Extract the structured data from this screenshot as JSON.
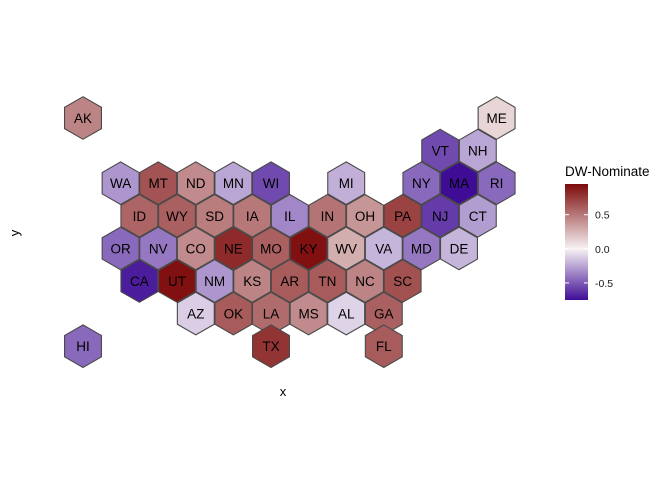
{
  "chart_data": {
    "type": "heatmap",
    "subtype": "hex-tile-map",
    "title": "",
    "xlabel": "x",
    "ylabel": "y",
    "grid": false,
    "legend": {
      "title": "DW-Nominate",
      "placement": "right",
      "range": [
        -0.75,
        0.95
      ],
      "ticks": [
        {
          "value": 0.5,
          "label": "0.5"
        },
        {
          "value": 0.0,
          "label": "0.0"
        },
        {
          "value": -0.5,
          "label": "-0.5"
        }
      ],
      "low_color": "#3f0d95",
      "mid_color": "#f7f2f4",
      "high_color": "#7d0a0a"
    },
    "states": [
      {
        "abbr": "AK",
        "col": 0,
        "row": 0,
        "value": 0.45
      },
      {
        "abbr": "ME",
        "col": 11,
        "row": 0,
        "value": 0.12
      },
      {
        "abbr": "VT",
        "col": 9.5,
        "row": 1,
        "value": -0.55
      },
      {
        "abbr": "NH",
        "col": 10.5,
        "row": 1,
        "value": -0.25
      },
      {
        "abbr": "WA",
        "col": 1,
        "row": 2,
        "value": -0.3
      },
      {
        "abbr": "MT",
        "col": 2,
        "row": 2,
        "value": 0.65
      },
      {
        "abbr": "ND",
        "col": 3,
        "row": 2,
        "value": 0.42
      },
      {
        "abbr": "MN",
        "col": 4,
        "row": 2,
        "value": -0.25
      },
      {
        "abbr": "WI",
        "col": 5,
        "row": 2,
        "value": -0.55
      },
      {
        "abbr": "MI",
        "col": 7,
        "row": 2,
        "value": -0.22
      },
      {
        "abbr": "NY",
        "col": 9,
        "row": 2,
        "value": -0.45
      },
      {
        "abbr": "MA",
        "col": 10,
        "row": 2,
        "value": -0.8
      },
      {
        "abbr": "RI",
        "col": 11,
        "row": 2,
        "value": -0.45
      },
      {
        "abbr": "ID",
        "col": 1.5,
        "row": 3,
        "value": 0.58
      },
      {
        "abbr": "WY",
        "col": 2.5,
        "row": 3,
        "value": 0.6
      },
      {
        "abbr": "SD",
        "col": 3.5,
        "row": 3,
        "value": 0.48
      },
      {
        "abbr": "IA",
        "col": 4.5,
        "row": 3,
        "value": 0.5
      },
      {
        "abbr": "IL",
        "col": 5.5,
        "row": 3,
        "value": -0.35
      },
      {
        "abbr": "IN",
        "col": 6.5,
        "row": 3,
        "value": 0.52
      },
      {
        "abbr": "OH",
        "col": 7.5,
        "row": 3,
        "value": 0.38
      },
      {
        "abbr": "PA",
        "col": 8.5,
        "row": 3,
        "value": 0.72
      },
      {
        "abbr": "NJ",
        "col": 9.5,
        "row": 3,
        "value": -0.6
      },
      {
        "abbr": "CT",
        "col": 10.5,
        "row": 3,
        "value": -0.28
      },
      {
        "abbr": "OR",
        "col": 1,
        "row": 4,
        "value": -0.45
      },
      {
        "abbr": "NV",
        "col": 2,
        "row": 4,
        "value": -0.4
      },
      {
        "abbr": "CO",
        "col": 3,
        "row": 4,
        "value": 0.42
      },
      {
        "abbr": "NE",
        "col": 4,
        "row": 4,
        "value": 0.82
      },
      {
        "abbr": "MO",
        "col": 5,
        "row": 4,
        "value": 0.6
      },
      {
        "abbr": "KY",
        "col": 6,
        "row": 4,
        "value": 0.92
      },
      {
        "abbr": "WV",
        "col": 7,
        "row": 4,
        "value": 0.28
      },
      {
        "abbr": "VA",
        "col": 8,
        "row": 4,
        "value": -0.2
      },
      {
        "abbr": "MD",
        "col": 9,
        "row": 4,
        "value": -0.4
      },
      {
        "abbr": "DE",
        "col": 10,
        "row": 4,
        "value": -0.2
      },
      {
        "abbr": "CA",
        "col": 1.5,
        "row": 5,
        "value": -0.7
      },
      {
        "abbr": "UT",
        "col": 2.5,
        "row": 5,
        "value": 0.92
      },
      {
        "abbr": "NM",
        "col": 3.5,
        "row": 5,
        "value": -0.3
      },
      {
        "abbr": "KS",
        "col": 4.5,
        "row": 5,
        "value": 0.45
      },
      {
        "abbr": "AR",
        "col": 5.5,
        "row": 5,
        "value": 0.62
      },
      {
        "abbr": "TN",
        "col": 6.5,
        "row": 5,
        "value": 0.62
      },
      {
        "abbr": "NC",
        "col": 7.5,
        "row": 5,
        "value": 0.45
      },
      {
        "abbr": "SC",
        "col": 8.5,
        "row": 5,
        "value": 0.66
      },
      {
        "abbr": "AZ",
        "col": 3,
        "row": 6,
        "value": -0.12
      },
      {
        "abbr": "OK",
        "col": 4,
        "row": 6,
        "value": 0.62
      },
      {
        "abbr": "LA",
        "col": 5,
        "row": 6,
        "value": 0.55
      },
      {
        "abbr": "MS",
        "col": 6,
        "row": 6,
        "value": 0.42
      },
      {
        "abbr": "AL",
        "col": 7,
        "row": 6,
        "value": -0.1
      },
      {
        "abbr": "GA",
        "col": 8,
        "row": 6,
        "value": 0.6
      },
      {
        "abbr": "HI",
        "col": 0,
        "row": 7,
        "value": -0.45
      },
      {
        "abbr": "TX",
        "col": 5,
        "row": 7,
        "value": 0.78
      },
      {
        "abbr": "FL",
        "col": 8,
        "row": 7,
        "value": 0.62
      }
    ]
  }
}
